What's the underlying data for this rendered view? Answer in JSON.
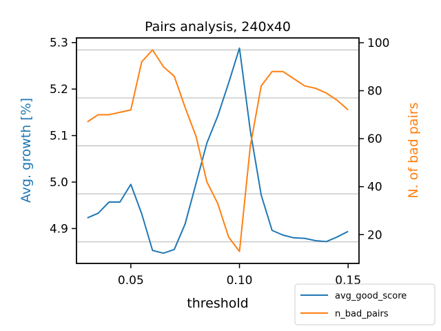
{
  "chart_data": {
    "type": "line",
    "title": "Pairs analysis, 240x40",
    "xlabel": "threshold",
    "ylabel_left": "Avg. growth [%]",
    "ylabel_right": "N. of bad pairs",
    "xlim": [
      0.025,
      0.155
    ],
    "ylim_left": [
      4.825,
      5.31
    ],
    "ylim_right": [
      8,
      102
    ],
    "x_ticks": [
      0.05,
      0.1,
      0.15
    ],
    "x_tick_labels": [
      "0.05",
      "0.10",
      "0.15"
    ],
    "y_left_ticks": [
      4.9,
      5.0,
      5.1,
      5.2,
      5.3
    ],
    "y_left_tick_labels": [
      "4.9",
      "5.0",
      "5.1",
      "5.2",
      "5.3"
    ],
    "y_right_ticks": [
      20,
      40,
      60,
      80,
      100
    ],
    "y_right_tick_labels": [
      "20",
      "40",
      "60",
      "80",
      "100"
    ],
    "grid_right": [
      17,
      37,
      57,
      77,
      97
    ],
    "legend_position": "bottom-right",
    "colors": {
      "left": "#1f77b4",
      "right": "#ff7f0e",
      "grid": "#b0b0b0"
    },
    "x": [
      0.03,
      0.035,
      0.04,
      0.045,
      0.05,
      0.055,
      0.06,
      0.065,
      0.07,
      0.075,
      0.08,
      0.085,
      0.09,
      0.095,
      0.1,
      0.105,
      0.11,
      0.115,
      0.12,
      0.125,
      0.13,
      0.135,
      0.14,
      0.145,
      0.15
    ],
    "series": [
      {
        "name": "avg_good_score",
        "axis": "left",
        "color": "#1f77b4",
        "values": [
          4.923,
          4.933,
          4.957,
          4.957,
          4.995,
          4.932,
          4.853,
          4.847,
          4.855,
          4.91,
          4.997,
          5.084,
          5.142,
          5.213,
          5.288,
          5.11,
          4.972,
          4.896,
          4.886,
          4.88,
          4.879,
          4.874,
          4.872,
          4.882,
          4.894
        ]
      },
      {
        "name": "n_bad_pairs",
        "axis": "right",
        "color": "#ff7f0e",
        "values": [
          67,
          70,
          70,
          71,
          72,
          92,
          97,
          90,
          86,
          73,
          61,
          42,
          33,
          19,
          13,
          57,
          82,
          88,
          88,
          85,
          82,
          81,
          79,
          76,
          72
        ]
      }
    ]
  }
}
